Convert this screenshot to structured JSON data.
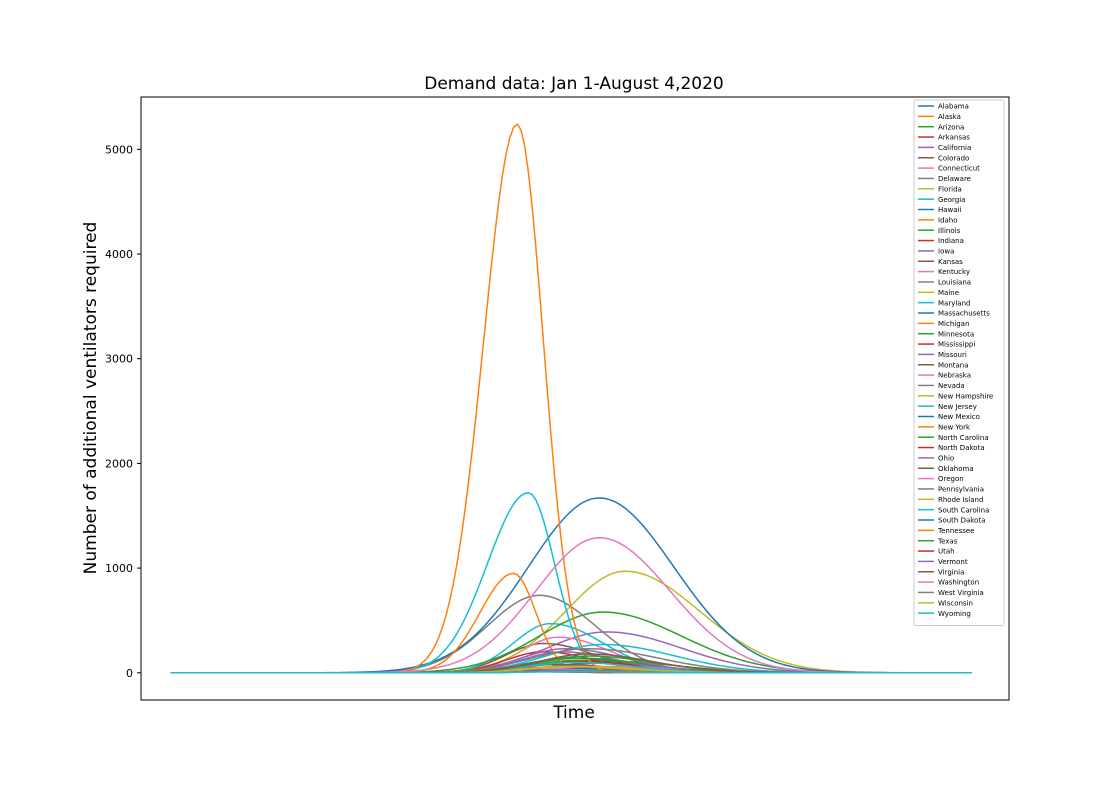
{
  "chart_data": {
    "type": "line",
    "title": "Demand data: Jan 1-August 4,2020",
    "xlabel": "Time",
    "ylabel": "Number of additional ventilators required",
    "x_unit": "day of year 2020",
    "xlim": [
      -8,
      225
    ],
    "ylim": [
      -260,
      5500
    ],
    "yticks": [
      0,
      1000,
      2000,
      3000,
      4000,
      5000
    ],
    "grid": false,
    "legend_position": "top-right",
    "palette": [
      "#1f77b4",
      "#ff7f0e",
      "#2ca02c",
      "#d62728",
      "#9467bd",
      "#8c564b",
      "#e377c2",
      "#7f7f7f",
      "#bcbd22",
      "#17becf"
    ],
    "series": [
      {
        "name": "Alabama",
        "shape": "peak",
        "peak_day": 108,
        "peak_value": 140,
        "rise": 13,
        "fall": 18
      },
      {
        "name": "Alaska",
        "shape": "peak",
        "peak_day": 98,
        "peak_value": 10,
        "rise": 10,
        "fall": 14
      },
      {
        "name": "Arizona",
        "shape": "peak",
        "peak_day": 110,
        "peak_value": 120,
        "rise": 13,
        "fall": 17
      },
      {
        "name": "Arkansas",
        "shape": "peak",
        "peak_day": 112,
        "peak_value": 40,
        "rise": 12,
        "fall": 16
      },
      {
        "name": "California",
        "shape": "peak",
        "peak_day": 117,
        "peak_value": 390,
        "rise": 16,
        "fall": 20
      },
      {
        "name": "Colorado",
        "shape": "peak",
        "peak_day": 100,
        "peak_value": 280,
        "rise": 10,
        "fall": 14
      },
      {
        "name": "Connecticut",
        "shape": "peak",
        "peak_day": 104,
        "peak_value": 340,
        "rise": 10,
        "fall": 14
      },
      {
        "name": "Delaware",
        "shape": "peak",
        "peak_day": 112,
        "peak_value": 40,
        "rise": 12,
        "fall": 16
      },
      {
        "name": "Florida",
        "shape": "peak",
        "peak_day": 122,
        "peak_value": 970,
        "rise": 16,
        "fall": 20
      },
      {
        "name": "Georgia",
        "shape": "peak",
        "peak_day": 102,
        "peak_value": 470,
        "rise": 10,
        "fall": 14
      },
      {
        "name": "Hawaii",
        "shape": "peak",
        "peak_day": 98,
        "peak_value": 10,
        "rise": 10,
        "fall": 14
      },
      {
        "name": "Idaho",
        "shape": "peak",
        "peak_day": 98,
        "peak_value": 20,
        "rise": 10,
        "fall": 14
      },
      {
        "name": "Illinois",
        "shape": "peak",
        "peak_day": 116,
        "peak_value": 580,
        "rise": 17,
        "fall": 21
      },
      {
        "name": "Indiana",
        "shape": "peak",
        "peak_day": 100,
        "peak_value": 200,
        "rise": 10,
        "fall": 14
      },
      {
        "name": "Iowa",
        "shape": "peak",
        "peak_day": 115,
        "peak_value": 90,
        "rise": 13,
        "fall": 17
      },
      {
        "name": "Kansas",
        "shape": "peak",
        "peak_day": 110,
        "peak_value": 60,
        "rise": 12,
        "fall": 16
      },
      {
        "name": "Kentucky",
        "shape": "peak",
        "peak_day": 110,
        "peak_value": 60,
        "rise": 12,
        "fall": 16
      },
      {
        "name": "Louisiana",
        "shape": "peak",
        "peak_day": 99,
        "peak_value": 740,
        "rise": 14,
        "fall": 15
      },
      {
        "name": "Maine",
        "shape": "peak",
        "peak_day": 102,
        "peak_value": 20,
        "rise": 10,
        "fall": 14
      },
      {
        "name": "Maryland",
        "shape": "peak",
        "peak_day": 116,
        "peak_value": 270,
        "rise": 15,
        "fall": 19
      },
      {
        "name": "Massachusetts",
        "shape": "peak",
        "peak_day": 115,
        "peak_value": 1670,
        "rise": 19,
        "fall": 20
      },
      {
        "name": "Michigan",
        "shape": "peak",
        "peak_day": 92,
        "peak_value": 950,
        "rise": 9,
        "fall": 6
      },
      {
        "name": "Minnesota",
        "shape": "peak",
        "peak_day": 118,
        "peak_value": 110,
        "rise": 14,
        "fall": 18
      },
      {
        "name": "Mississippi",
        "shape": "peak",
        "peak_day": 110,
        "peak_value": 110,
        "rise": 12,
        "fall": 16
      },
      {
        "name": "Missouri",
        "shape": "peak",
        "peak_day": 105,
        "peak_value": 200,
        "rise": 11,
        "fall": 15
      },
      {
        "name": "Montana",
        "shape": "peak",
        "peak_day": 96,
        "peak_value": 10,
        "rise": 10,
        "fall": 14
      },
      {
        "name": "Nebraska",
        "shape": "peak",
        "peak_day": 118,
        "peak_value": 60,
        "rise": 13,
        "fall": 17
      },
      {
        "name": "Nevada",
        "shape": "peak",
        "peak_day": 98,
        "peak_value": 80,
        "rise": 10,
        "fall": 14
      },
      {
        "name": "New Hampshire",
        "shape": "peak",
        "peak_day": 110,
        "peak_value": 30,
        "rise": 12,
        "fall": 16
      },
      {
        "name": "New Jersey",
        "shape": "peak",
        "peak_day": 96,
        "peak_value": 1720,
        "rise": 11,
        "fall": 7
      },
      {
        "name": "New Mexico",
        "shape": "peak",
        "peak_day": 110,
        "peak_value": 40,
        "rise": 12,
        "fall": 16
      },
      {
        "name": "New York",
        "shape": "peak",
        "peak_day": 93,
        "peak_value": 5240,
        "rise": 9,
        "fall": 7
      },
      {
        "name": "North Carolina",
        "shape": "peak",
        "peak_day": 110,
        "peak_value": 140,
        "rise": 13,
        "fall": 17
      },
      {
        "name": "North Dakota",
        "shape": "peak",
        "peak_day": 110,
        "peak_value": 20,
        "rise": 12,
        "fall": 16
      },
      {
        "name": "Ohio",
        "shape": "peak",
        "peak_day": 106,
        "peak_value": 230,
        "rise": 12,
        "fall": 16
      },
      {
        "name": "Oklahoma",
        "shape": "peak",
        "peak_day": 104,
        "peak_value": 80,
        "rise": 11,
        "fall": 15
      },
      {
        "name": "Oregon",
        "shape": "peak",
        "peak_day": 98,
        "peak_value": 40,
        "rise": 10,
        "fall": 14
      },
      {
        "name": "Pennsylvania",
        "shape": "peak",
        "peak_day": 112,
        "peak_value": 230,
        "rise": 15,
        "fall": 19
      },
      {
        "name": "Rhode Island",
        "shape": "peak",
        "peak_day": 110,
        "peak_value": 60,
        "rise": 12,
        "fall": 16
      },
      {
        "name": "South Carolina",
        "shape": "peak",
        "peak_day": 108,
        "peak_value": 100,
        "rise": 12,
        "fall": 16
      },
      {
        "name": "South Dakota",
        "shape": "peak",
        "peak_day": 112,
        "peak_value": 20,
        "rise": 12,
        "fall": 16
      },
      {
        "name": "Tennessee",
        "shape": "peak",
        "peak_day": 105,
        "peak_value": 60,
        "rise": 11,
        "fall": 15
      },
      {
        "name": "Texas",
        "shape": "peak",
        "peak_day": 112,
        "peak_value": 160,
        "rise": 14,
        "fall": 18
      },
      {
        "name": "Utah",
        "shape": "peak",
        "peak_day": 108,
        "peak_value": 20,
        "rise": 12,
        "fall": 16
      },
      {
        "name": "Vermont",
        "shape": "peak",
        "peak_day": 97,
        "peak_value": 30,
        "rise": 10,
        "fall": 14
      },
      {
        "name": "Virginia",
        "shape": "peak",
        "peak_day": 112,
        "peak_value": 180,
        "rise": 13,
        "fall": 17
      },
      {
        "name": "Washington",
        "shape": "peak",
        "peak_day": 115,
        "peak_value": 1290,
        "rise": 17,
        "fall": 19
      },
      {
        "name": "West Virginia",
        "shape": "peak",
        "peak_day": 110,
        "peak_value": 20,
        "rise": 12,
        "fall": 16
      },
      {
        "name": "Wisconsin",
        "shape": "peak",
        "peak_day": 108,
        "peak_value": 60,
        "rise": 12,
        "fall": 16
      },
      {
        "name": "Wyoming",
        "shape": "peak",
        "peak_day": 108,
        "peak_value": 10,
        "rise": 12,
        "fall": 16
      }
    ]
  }
}
